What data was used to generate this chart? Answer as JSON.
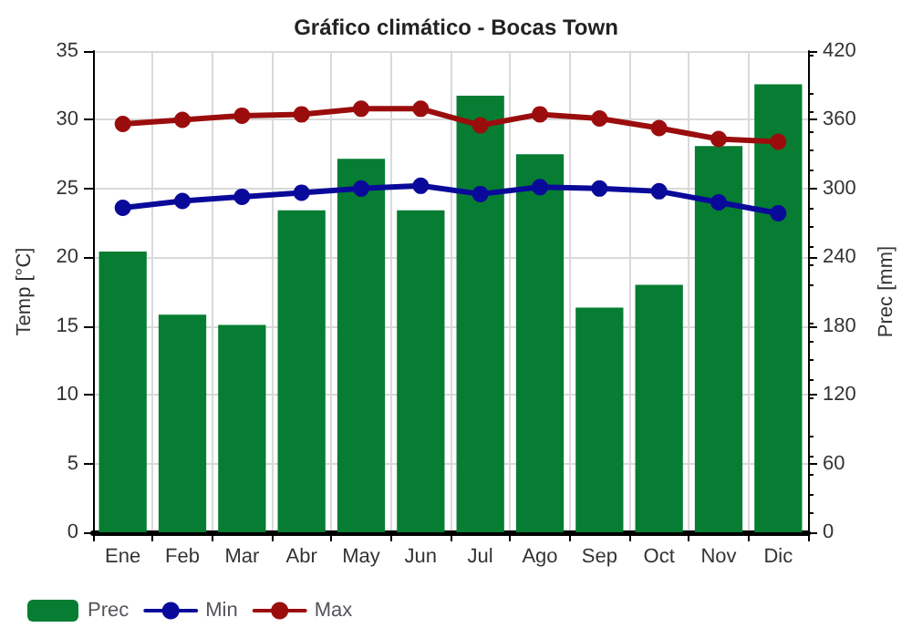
{
  "chart_data": {
    "type": "bar",
    "title": "Gráfico climático - Bocas Town",
    "ylabel": "Temp [°C]",
    "y2label": "Prec [mm]",
    "categories": [
      "Ene",
      "Feb",
      "Mar",
      "Abr",
      "May",
      "Jun",
      "Jul",
      "Ago",
      "Sep",
      "Oct",
      "Nov",
      "Dic"
    ],
    "series": [
      {
        "name": "Prec",
        "axis": "y2",
        "color": "#067d32",
        "values": [
          245,
          190,
          181,
          281,
          326,
          281,
          381,
          330,
          196,
          216,
          337,
          391
        ]
      },
      {
        "name": "Min",
        "type": "line",
        "color": "#0a0a9a",
        "values": [
          23.6,
          24.1,
          24.4,
          24.7,
          25.0,
          25.2,
          24.6,
          25.1,
          25.0,
          24.8,
          24.0,
          23.2
        ]
      },
      {
        "name": "Max",
        "type": "line",
        "color": "#9b0d0d",
        "values": [
          29.7,
          30.0,
          30.3,
          30.4,
          30.8,
          30.8,
          29.6,
          30.4,
          30.1,
          29.4,
          28.6,
          28.4
        ]
      }
    ],
    "ylim": [
      0,
      35
    ],
    "yticks": [
      0,
      5,
      10,
      15,
      20,
      25,
      30,
      35
    ],
    "y2lim": [
      0,
      420
    ],
    "y2ticks": [
      0,
      60,
      120,
      180,
      240,
      300,
      360,
      420
    ],
    "grid": true,
    "legend": "bottom left",
    "marker": "circle",
    "line_style": "solid"
  }
}
